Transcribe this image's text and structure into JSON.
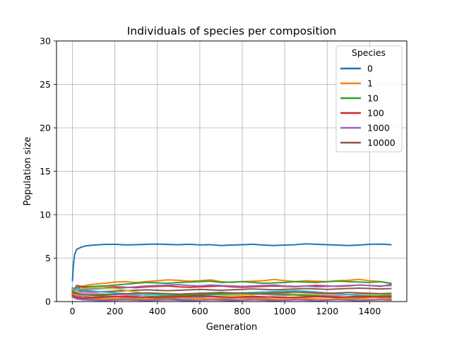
{
  "chart_data": {
    "type": "line",
    "title": "Individuals of species per composition",
    "xlabel": "Generation",
    "ylabel": "Population size",
    "xlim": [
      -75,
      1575
    ],
    "ylim": [
      0,
      30
    ],
    "xticks": [
      0,
      200,
      400,
      600,
      800,
      1000,
      1200,
      1400
    ],
    "yticks": [
      0,
      5,
      10,
      15,
      20,
      25,
      30
    ],
    "grid": true,
    "legend": {
      "title": "Species",
      "placement": "top-right",
      "entries": [
        {
          "label": "0",
          "color": "#1f77b4"
        },
        {
          "label": "1",
          "color": "#ff7f0e"
        },
        {
          "label": "10",
          "color": "#2ca02c"
        },
        {
          "label": "100",
          "color": "#d62728"
        },
        {
          "label": "1000",
          "color": "#9467bd"
        },
        {
          "label": "10000",
          "color": "#8c564b"
        }
      ]
    },
    "series": [
      {
        "name": "0",
        "color": "#1f77b4",
        "x": [
          0,
          5,
          10,
          20,
          40,
          60,
          100,
          150,
          200,
          250,
          300,
          350,
          400,
          450,
          500,
          550,
          600,
          650,
          700,
          750,
          800,
          850,
          900,
          950,
          1000,
          1050,
          1100,
          1150,
          1200,
          1250,
          1300,
          1350,
          1400,
          1450,
          1500
        ],
        "values": [
          2.4,
          4.3,
          5.4,
          6.0,
          6.25,
          6.4,
          6.5,
          6.58,
          6.6,
          6.52,
          6.55,
          6.6,
          6.62,
          6.58,
          6.55,
          6.6,
          6.52,
          6.55,
          6.45,
          6.5,
          6.55,
          6.6,
          6.5,
          6.45,
          6.5,
          6.55,
          6.65,
          6.6,
          6.55,
          6.5,
          6.45,
          6.5,
          6.6,
          6.62,
          6.55
        ]
      },
      {
        "name": "1",
        "color": "#ff7f0e",
        "x": [
          0,
          20,
          50,
          100,
          150,
          200,
          250,
          300,
          350,
          400,
          450,
          500,
          550,
          600,
          650,
          700,
          750,
          800,
          850,
          900,
          950,
          1000,
          1050,
          1100,
          1150,
          1200,
          1250,
          1300,
          1350,
          1400,
          1450,
          1500
        ],
        "values": [
          1.3,
          1.6,
          1.8,
          2.0,
          2.1,
          2.25,
          2.3,
          2.2,
          2.3,
          2.4,
          2.5,
          2.45,
          2.35,
          2.4,
          2.5,
          2.3,
          2.2,
          2.3,
          2.35,
          2.4,
          2.55,
          2.4,
          2.3,
          2.4,
          2.35,
          2.3,
          2.4,
          2.45,
          2.55,
          2.4,
          2.3,
          2.1
        ]
      },
      {
        "name": "10",
        "color": "#2ca02c",
        "x": [
          0,
          20,
          50,
          100,
          150,
          200,
          250,
          300,
          350,
          400,
          450,
          500,
          550,
          600,
          650,
          700,
          750,
          800,
          850,
          900,
          950,
          1000,
          1050,
          1100,
          1150,
          1200,
          1250,
          1300,
          1350,
          1400,
          1450,
          1500
        ],
        "values": [
          1.5,
          1.6,
          1.7,
          1.75,
          1.8,
          1.9,
          2.0,
          2.1,
          2.2,
          2.15,
          2.1,
          2.2,
          2.25,
          2.3,
          2.35,
          2.2,
          2.25,
          2.3,
          2.2,
          2.1,
          2.15,
          2.2,
          2.3,
          2.25,
          2.2,
          2.3,
          2.35,
          2.3,
          2.25,
          2.2,
          2.3,
          2.1
        ]
      },
      {
        "name": "100",
        "color": "#d62728",
        "x": [
          0,
          10,
          20,
          40,
          60,
          100,
          150,
          200,
          250,
          300,
          350,
          400,
          450,
          500,
          550,
          600,
          650,
          700,
          750,
          800,
          850,
          900,
          950,
          1000,
          1050,
          1100,
          1150,
          1200,
          1250,
          1300,
          1350,
          1400,
          1450,
          1500
        ],
        "values": [
          0.9,
          1.4,
          1.85,
          1.75,
          1.6,
          1.55,
          1.6,
          1.7,
          1.65,
          1.6,
          1.7,
          1.75,
          1.8,
          1.7,
          1.65,
          1.7,
          1.75,
          1.8,
          1.7,
          1.65,
          1.7,
          1.75,
          1.8,
          1.75,
          1.7,
          1.8,
          1.85,
          1.8,
          1.75,
          1.8,
          1.9,
          1.85,
          1.75,
          1.95
        ]
      },
      {
        "name": "1000",
        "color": "#9467bd",
        "x": [
          0,
          20,
          50,
          100,
          150,
          200,
          250,
          300,
          350,
          400,
          450,
          500,
          550,
          600,
          650,
          700,
          750,
          800,
          850,
          900,
          950,
          1000,
          1050,
          1100,
          1150,
          1200,
          1250,
          1300,
          1350,
          1400,
          1450,
          1500
        ],
        "values": [
          1.0,
          1.5,
          1.4,
          1.45,
          1.5,
          1.55,
          1.6,
          1.7,
          1.8,
          1.85,
          1.9,
          1.95,
          1.85,
          1.8,
          1.9,
          1.85,
          1.8,
          1.75,
          1.8,
          1.85,
          1.9,
          1.8,
          1.75,
          1.8,
          1.7,
          1.75,
          1.8,
          1.85,
          1.9,
          1.85,
          1.8,
          1.85
        ]
      },
      {
        "name": "10000",
        "color": "#8c564b",
        "x": [
          0,
          20,
          50,
          100,
          150,
          200,
          250,
          300,
          350,
          400,
          450,
          500,
          550,
          600,
          650,
          700,
          750,
          800,
          850,
          900,
          950,
          1000,
          1050,
          1100,
          1150,
          1200,
          1250,
          1300,
          1350,
          1400,
          1450,
          1500
        ],
        "values": [
          1.2,
          1.3,
          1.2,
          1.1,
          1.15,
          1.2,
          1.25,
          1.3,
          1.35,
          1.3,
          1.25,
          1.3,
          1.35,
          1.4,
          1.35,
          1.3,
          1.35,
          1.4,
          1.45,
          1.4,
          1.35,
          1.4,
          1.45,
          1.5,
          1.45,
          1.4,
          1.45,
          1.5,
          1.55,
          1.5,
          1.45,
          1.5
        ]
      },
      {
        "color": "#e377c2",
        "x": [
          0,
          20,
          50,
          100,
          150,
          200,
          250,
          300,
          350,
          400,
          450,
          500,
          550,
          600,
          650,
          700,
          750,
          800,
          850,
          900,
          950,
          1000,
          1050,
          1100,
          1150,
          1200,
          1250,
          1300,
          1350,
          1400,
          1450,
          1500
        ],
        "values": [
          1.4,
          1.2,
          1.0,
          0.9,
          0.85,
          0.8,
          0.75,
          0.7,
          0.8,
          0.85,
          0.9,
          0.8,
          0.75,
          0.7,
          0.75,
          0.8,
          0.85,
          0.9,
          0.85,
          0.8,
          0.75,
          0.7,
          0.8,
          0.85,
          0.8,
          0.75,
          0.7,
          0.8,
          0.85,
          0.9,
          0.85,
          0.8
        ]
      },
      {
        "color": "#7f7f7f",
        "x": [
          0,
          20,
          50,
          100,
          150,
          200,
          250,
          300,
          350,
          400,
          450,
          500,
          550,
          600,
          650,
          700,
          750,
          800,
          850,
          900,
          950,
          1000,
          1050,
          1100,
          1150,
          1200,
          1250,
          1300,
          1350,
          1400,
          1450,
          1500
        ],
        "values": [
          0.8,
          0.7,
          0.6,
          0.5,
          0.55,
          0.6,
          0.5,
          0.45,
          0.5,
          0.55,
          0.6,
          0.5,
          0.45,
          0.5,
          0.55,
          0.5,
          0.45,
          0.4,
          0.45,
          0.5,
          0.55,
          0.5,
          0.45,
          0.5,
          0.55,
          0.5,
          0.45,
          0.4,
          0.45,
          0.5,
          0.55,
          0.5
        ]
      },
      {
        "color": "#bcbd22",
        "x": [
          0,
          20,
          50,
          100,
          150,
          200,
          250,
          300,
          350,
          400,
          450,
          500,
          550,
          600,
          650,
          700,
          750,
          800,
          850,
          900,
          950,
          1000,
          1050,
          1100,
          1150,
          1200,
          1250,
          1300,
          1350,
          1400,
          1450,
          1500
        ],
        "values": [
          1.1,
          1.3,
          1.5,
          1.6,
          1.55,
          1.5,
          1.3,
          1.1,
          0.9,
          0.8,
          0.7,
          0.75,
          0.8,
          0.85,
          0.8,
          0.75,
          0.7,
          0.75,
          0.8,
          0.9,
          0.95,
          0.9,
          0.85,
          0.8,
          0.85,
          0.9,
          0.85,
          0.8,
          0.75,
          0.8,
          0.85,
          0.8
        ]
      },
      {
        "color": "#17becf",
        "x": [
          0,
          20,
          50,
          100,
          150,
          200,
          250,
          300,
          350,
          400,
          450,
          500,
          550,
          600,
          650,
          700,
          750,
          800,
          850,
          900,
          950,
          1000,
          1050,
          1100,
          1150,
          1200,
          1250,
          1300,
          1350,
          1400,
          1450,
          1500
        ],
        "values": [
          1.6,
          1.5,
          1.3,
          1.2,
          1.1,
          1.0,
          0.9,
          0.8,
          0.75,
          0.8,
          0.85,
          0.8,
          0.75,
          0.7,
          0.8,
          0.85,
          0.9,
          1.0,
          1.05,
          1.1,
          1.15,
          1.2,
          1.25,
          1.2,
          1.1,
          1.0,
          0.9,
          0.8,
          0.7,
          0.65,
          0.6,
          0.65
        ]
      },
      {
        "color": "#1f77b4",
        "x": [
          0,
          20,
          50,
          100,
          150,
          200,
          250,
          300,
          350,
          400,
          450,
          500,
          550,
          600,
          650,
          700,
          750,
          800,
          850,
          900,
          950,
          1000,
          1050,
          1100,
          1150,
          1200,
          1250,
          1300,
          1350,
          1400,
          1450,
          1500
        ],
        "values": [
          0.6,
          0.4,
          0.3,
          0.25,
          0.2,
          0.25,
          0.3,
          0.25,
          0.2,
          0.25,
          0.3,
          0.25,
          0.2,
          0.15,
          0.2,
          0.25,
          0.2,
          0.15,
          0.2,
          0.25,
          0.2,
          0.15,
          0.2,
          0.25,
          0.3,
          0.25,
          0.2,
          0.25,
          0.3,
          0.25,
          0.2,
          0.25
        ]
      },
      {
        "color": "#ff7f0e",
        "x": [
          0,
          20,
          50,
          100,
          150,
          200,
          250,
          300,
          350,
          400,
          450,
          500,
          550,
          600,
          650,
          700,
          750,
          800,
          850,
          900,
          950,
          1000,
          1050,
          1100,
          1150,
          1200,
          1250,
          1300,
          1350,
          1400,
          1450,
          1500
        ],
        "values": [
          0.9,
          0.6,
          0.4,
          0.35,
          0.3,
          0.35,
          0.4,
          0.35,
          0.3,
          0.35,
          0.4,
          0.45,
          0.4,
          0.35,
          0.3,
          0.35,
          0.4,
          0.35,
          0.3,
          0.35,
          0.3,
          0.25,
          0.3,
          0.35,
          0.3,
          0.25,
          0.3,
          0.35,
          0.3,
          0.25,
          0.3,
          0.35
        ]
      },
      {
        "color": "#2ca02c",
        "x": [
          0,
          20,
          50,
          100,
          150,
          200,
          250,
          300,
          350,
          400,
          450,
          500,
          550,
          600,
          650,
          700,
          750,
          800,
          850,
          900,
          950,
          1000,
          1050,
          1100,
          1150,
          1200,
          1250,
          1300,
          1350,
          1400,
          1450,
          1500
        ],
        "values": [
          1.2,
          1.0,
          0.8,
          0.7,
          0.65,
          0.6,
          0.55,
          0.5,
          0.55,
          0.6,
          0.65,
          0.7,
          0.75,
          0.8,
          0.85,
          0.9,
          0.95,
          1.0,
          0.95,
          0.9,
          0.85,
          0.8,
          0.75,
          0.7,
          0.65,
          0.6,
          0.55,
          0.5,
          0.55,
          0.6,
          0.65,
          0.7
        ]
      },
      {
        "color": "#d62728",
        "x": [
          0,
          20,
          50,
          100,
          150,
          200,
          250,
          300,
          350,
          400,
          450,
          500,
          550,
          600,
          650,
          700,
          750,
          800,
          850,
          900,
          950,
          1000,
          1050,
          1100,
          1150,
          1200,
          1250,
          1300,
          1350,
          1400,
          1450,
          1500
        ],
        "values": [
          0.7,
          0.5,
          0.4,
          0.45,
          0.5,
          0.55,
          0.6,
          0.55,
          0.5,
          0.45,
          0.5,
          0.55,
          0.6,
          0.65,
          0.6,
          0.55,
          0.5,
          0.55,
          0.6,
          0.55,
          0.5,
          0.45,
          0.5,
          0.55,
          0.6,
          0.55,
          0.5,
          0.55,
          0.6,
          0.55,
          0.5,
          0.55
        ]
      },
      {
        "color": "#9467bd",
        "x": [
          0,
          20,
          50,
          100,
          150,
          200,
          250,
          300,
          350,
          400,
          450,
          500,
          550,
          600,
          650,
          700,
          750,
          800,
          850,
          900,
          950,
          1000,
          1050,
          1100,
          1150,
          1200,
          1250,
          1300,
          1350,
          1400,
          1450,
          1500
        ],
        "values": [
          0.5,
          0.3,
          0.2,
          0.15,
          0.1,
          0.15,
          0.2,
          0.15,
          0.1,
          0.15,
          0.2,
          0.15,
          0.1,
          0.15,
          0.2,
          0.15,
          0.1,
          0.15,
          0.2,
          0.15,
          0.1,
          0.15,
          0.2,
          0.15,
          0.1,
          0.15,
          0.2,
          0.15,
          0.1,
          0.15,
          0.2,
          0.15
        ]
      },
      {
        "color": "#8c564b",
        "x": [
          0,
          20,
          50,
          100,
          150,
          200,
          250,
          300,
          350,
          400,
          450,
          500,
          550,
          600,
          650,
          700,
          750,
          800,
          850,
          900,
          950,
          1000,
          1050,
          1100,
          1150,
          1200,
          1250,
          1300,
          1350,
          1400,
          1450,
          1500
        ],
        "values": [
          1.0,
          0.9,
          0.8,
          0.75,
          0.8,
          0.85,
          0.9,
          0.95,
          1.0,
          0.95,
          0.9,
          0.85,
          0.9,
          0.95,
          1.0,
          1.05,
          1.0,
          0.95,
          0.9,
          0.95,
          1.0,
          1.05,
          1.1,
          1.05,
          1.0,
          0.95,
          1.0,
          1.05,
          1.0,
          0.95,
          0.9,
          0.95
        ]
      }
    ]
  }
}
